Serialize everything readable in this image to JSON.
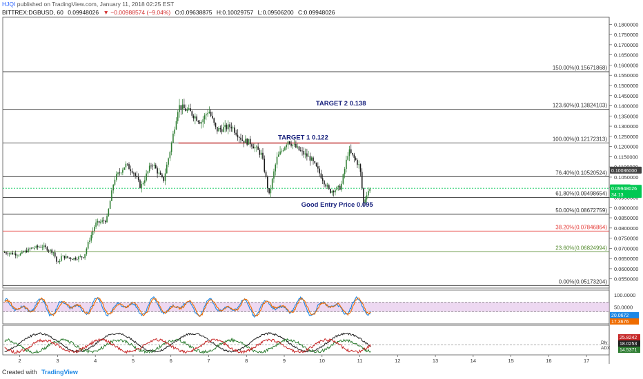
{
  "header": {
    "user": "HJQI",
    "published": "published on TradingView.com, January 11, 2018 02:25 EST",
    "symbol": "BITTREX:DGBUSD, 60",
    "last": "0.09948026",
    "change": "▼ −0.00988574 (−9.04%)",
    "open": "O:0.09638875",
    "high": "H:0.10029757",
    "low": "L:0.09506200",
    "close": "C:0.09948026"
  },
  "footer": {
    "created": "Created with",
    "brand": "TradingView"
  },
  "colors": {
    "up": "#2e7d32",
    "down": "#1b1b1b",
    "fib": "#333333",
    "fib382": "#e53935",
    "fib236": "#558b2f",
    "target": "#1a237e",
    "resistance": "#b71c1c",
    "rsi_band": "#e1bee7",
    "last_price": "#00c853"
  },
  "chart_data": [
    {
      "type": "candlestick",
      "title": "DGBUSD 60",
      "ylim": [
        0.0505,
        0.1835
      ],
      "y_ticks": [
        "0.1800000",
        "0.1750000",
        "0.1700000",
        "0.1650000",
        "0.1600000",
        "0.1550000",
        "0.1500000",
        "0.1450000",
        "0.1400000",
        "0.1350000",
        "0.1300000",
        "0.1250000",
        "0.1200000",
        "0.1150000",
        "0.1100000",
        "0.1050000",
        "0.1000000",
        "0.0950000",
        "0.0900000",
        "0.0850000",
        "0.0800000",
        "0.0750000",
        "0.0700000",
        "0.0650000",
        "0.0600000",
        "0.0550000"
      ],
      "x_ticks": [
        "2",
        "3",
        "4",
        "5",
        "6",
        "7",
        "8",
        "9",
        "10",
        "11",
        "12",
        "13",
        "14",
        "15",
        "16",
        "17"
      ],
      "price_path": [
        [
          1.6,
          0.068
        ],
        [
          2.0,
          0.067
        ],
        [
          2.3,
          0.07
        ],
        [
          2.6,
          0.071
        ],
        [
          2.9,
          0.068
        ],
        [
          3.0,
          0.062
        ],
        [
          3.1,
          0.066
        ],
        [
          3.4,
          0.065
        ],
        [
          3.7,
          0.066
        ],
        [
          3.8,
          0.072
        ],
        [
          4.0,
          0.082
        ],
        [
          4.3,
          0.084
        ],
        [
          4.5,
          0.104
        ],
        [
          4.8,
          0.111
        ],
        [
          5.0,
          0.108
        ],
        [
          5.2,
          0.1
        ],
        [
          5.5,
          0.112
        ],
        [
          5.8,
          0.103
        ],
        [
          6.0,
          0.12
        ],
        [
          6.2,
          0.14
        ],
        [
          6.5,
          0.137
        ],
        [
          6.8,
          0.132
        ],
        [
          7.0,
          0.138
        ],
        [
          7.2,
          0.128
        ],
        [
          7.6,
          0.13
        ],
        [
          7.9,
          0.123
        ],
        [
          8.1,
          0.122
        ],
        [
          8.4,
          0.116
        ],
        [
          8.6,
          0.096
        ],
        [
          8.8,
          0.114
        ],
        [
          9.1,
          0.123
        ],
        [
          9.4,
          0.118
        ],
        [
          9.7,
          0.114
        ],
        [
          9.9,
          0.108
        ],
        [
          10.2,
          0.098
        ],
        [
          10.5,
          0.1
        ],
        [
          10.7,
          0.118
        ],
        [
          10.9,
          0.113
        ],
        [
          11.0,
          0.11
        ],
        [
          11.1,
          0.092
        ],
        [
          11.2,
          0.098
        ],
        [
          11.3,
          0.0995
        ]
      ],
      "fib_levels": [
        {
          "label": "150.00%(0.15671868)",
          "value": 0.15671868
        },
        {
          "label": "123.60%(0.13824103)",
          "value": 0.13824103
        },
        {
          "label": "100.00%(0.12172313)",
          "value": 0.12172313
        },
        {
          "label": "76.40%(0.10520524)",
          "value": 0.10520524
        },
        {
          "label": "61.80%(0.09498654)",
          "value": 0.09498654
        },
        {
          "label": "50.00%(0.08672759)",
          "value": 0.08672759
        },
        {
          "label": "38.20%(0.07846864)",
          "value": 0.07846864
        },
        {
          "label": "23.60%(0.06824994)",
          "value": 0.06824994
        },
        {
          "label": "0.00%(0.05173204)",
          "value": 0.05173204
        }
      ],
      "annotations": [
        {
          "text": "TARGET 2 0.138",
          "x": 10.5,
          "y": 0.1401
        },
        {
          "text": "TARGET 1 0.122",
          "x": 9.5,
          "y": 0.1235
        },
        {
          "text": "Good Entry Price 0.095",
          "x": 10.4,
          "y": 0.0904
        }
      ],
      "resistance": {
        "x_start": 6.2,
        "x_end": 11.0,
        "y": 0.1217
      },
      "badges": [
        {
          "text": "0.10036000",
          "y": 0.1084
        },
        {
          "text": "DGBUSD",
          "y": 0.0997
        },
        {
          "text": "0.09948026",
          "y": 0.0995
        },
        {
          "text": "34:13",
          "y": 0.0965
        }
      ],
      "x_range": [
        1.55,
        17.6
      ]
    },
    {
      "type": "line",
      "title": "RSI",
      "ylim": [
        -20,
        120
      ],
      "y_ticks": [
        "100.0000",
        "50.0000"
      ],
      "value_labels": [
        "20.0672",
        "17.3676"
      ],
      "band": [
        30,
        70
      ]
    },
    {
      "type": "line",
      "title": "ADX",
      "value_labels": [
        "25.8242",
        "18.0253",
        "14.5371"
      ],
      "label_prefixes": [
        "Dly",
        "ADX"
      ]
    }
  ]
}
